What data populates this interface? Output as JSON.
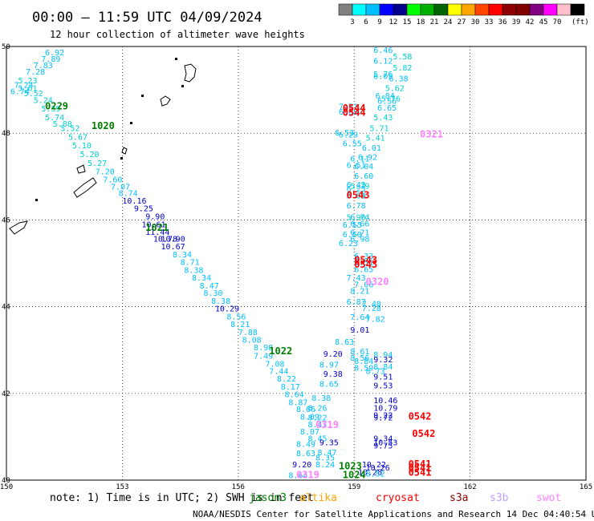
{
  "title": "00:00 – 11:59 UTC 04/09/2024",
  "subtitle": "12 hour collection of altimeter wave heights",
  "colorbar": {
    "ticks": [
      "3",
      "6",
      "9",
      "12",
      "15",
      "18",
      "21",
      "24",
      "27",
      "30",
      "33",
      "36",
      "39",
      "42",
      "45",
      "70"
    ],
    "unit": "(ft)",
    "colors": [
      "#808080",
      "#00ffff",
      "#00bfff",
      "#0000ff",
      "#00008b",
      "#00ff00",
      "#00b000",
      "#006400",
      "#ffff00",
      "#ffa500",
      "#ff4500",
      "#ff0000",
      "#8b0000",
      "#800000",
      "#800080",
      "#ff00ff",
      "#ffc0cb",
      "#000000"
    ]
  },
  "note": {
    "prefix": "note:  1) Time is in UTC; 2) SWH is in feet",
    "satellites": [
      {
        "name": "jason3",
        "color": "#008000"
      },
      {
        "name": "altika",
        "color": "#ffa500"
      },
      {
        "name": "cryosat",
        "color": "#ff0000"
      },
      {
        "name": "s3a",
        "color": "#8b0000"
      },
      {
        "name": "s3b",
        "color": "#c0a0ff"
      },
      {
        "name": "swot",
        "color": "#ff80ff"
      }
    ]
  },
  "footer": "NOAA/NESDIS Center for Satellite Applications and Research   14 Dec 04:40:54 UTC 2024",
  "chart_data": {
    "type": "scatter",
    "title": "00:00 – 11:59 UTC 04/09/2024",
    "subtitle": "12 hour collection of altimeter wave heights",
    "xlim": [
      150,
      165
    ],
    "ylim": [
      40,
      50
    ],
    "xticks": [
      150,
      153,
      156,
      159,
      162,
      165
    ],
    "yticks": [
      40,
      42,
      44,
      46,
      48,
      50
    ],
    "grid": true,
    "units": "ft",
    "tracks": [
      {
        "time": "0229",
        "satellite": "jason3",
        "label_lon": 151.0,
        "label_lat": 48.55
      },
      {
        "time": "1020",
        "satellite": "jason3",
        "label_lon": 152.2,
        "label_lat": 48.1
      },
      {
        "time": "1021",
        "satellite": "jason3",
        "label_lon": 153.6,
        "label_lat": 45.75
      },
      {
        "time": "1022",
        "satellite": "jason3",
        "label_lon": 156.8,
        "label_lat": 42.9
      },
      {
        "time": "1023",
        "satellite": "jason3",
        "label_lon": 158.6,
        "label_lat": 40.25
      },
      {
        "time": "1024",
        "satellite": "jason3",
        "label_lon": 158.7,
        "label_lat": 40.05
      },
      {
        "time": "0544",
        "satellite": "cryosat",
        "label_lon": 158.7,
        "label_lat": 48.5
      },
      {
        "time": "0544",
        "satellite": "cryosat",
        "label_lon": 158.7,
        "label_lat": 48.4
      },
      {
        "time": "0543",
        "satellite": "cryosat",
        "label_lon": 158.8,
        "label_lat": 46.5
      },
      {
        "time": "0543",
        "satellite": "cryosat",
        "label_lon": 159.0,
        "label_lat": 45.0
      },
      {
        "time": "0543",
        "satellite": "cryosat",
        "label_lon": 159.0,
        "label_lat": 44.9
      },
      {
        "time": "0542",
        "satellite": "cryosat",
        "label_lon": 160.4,
        "label_lat": 41.4
      },
      {
        "time": "0542",
        "satellite": "cryosat",
        "label_lon": 160.5,
        "label_lat": 41.0
      },
      {
        "time": "0541",
        "satellite": "cryosat",
        "label_lon": 160.4,
        "label_lat": 40.3
      },
      {
        "time": "0541",
        "satellite": "cryosat",
        "label_lon": 160.4,
        "label_lat": 40.2
      },
      {
        "time": "0541",
        "satellite": "cryosat",
        "label_lon": 160.4,
        "label_lat": 40.1
      },
      {
        "time": "0321",
        "satellite": "swot",
        "label_lon": 160.7,
        "label_lat": 47.9
      },
      {
        "time": "0320",
        "satellite": "swot",
        "label_lon": 159.3,
        "label_lat": 44.5
      },
      {
        "time": "0319",
        "satellite": "swot",
        "label_lon": 158.0,
        "label_lat": 41.2
      },
      {
        "time": "0319",
        "satellite": "swot",
        "label_lon": 157.5,
        "label_lat": 40.05
      }
    ],
    "points": [
      {
        "lon": 151.0,
        "lat": 49.8,
        "v": 6.92
      },
      {
        "lon": 150.9,
        "lat": 49.65,
        "v": 7.89
      },
      {
        "lon": 150.7,
        "lat": 49.5,
        "v": 7.83
      },
      {
        "lon": 150.5,
        "lat": 49.35,
        "v": 7.28
      },
      {
        "lon": 150.3,
        "lat": 49.15,
        "v": 5.23
      },
      {
        "lon": 150.2,
        "lat": 49.05,
        "v": 7.24
      },
      {
        "lon": 150.3,
        "lat": 48.97,
        "v": 5.61
      },
      {
        "lon": 150.1,
        "lat": 48.9,
        "v": 6.74
      },
      {
        "lon": 150.45,
        "lat": 48.85,
        "v": 5.52
      },
      {
        "lon": 150.7,
        "lat": 48.7,
        "v": 5.24
      },
      {
        "lon": 150.9,
        "lat": 48.5,
        "v": 5.39
      },
      {
        "lon": 151.0,
        "lat": 48.3,
        "v": 5.74
      },
      {
        "lon": 151.2,
        "lat": 48.15,
        "v": 5.88
      },
      {
        "lon": 151.4,
        "lat": 48.05,
        "v": 5.52
      },
      {
        "lon": 151.6,
        "lat": 47.85,
        "v": 5.67
      },
      {
        "lon": 151.7,
        "lat": 47.65,
        "v": 5.1
      },
      {
        "lon": 151.9,
        "lat": 47.45,
        "v": 5.2
      },
      {
        "lon": 152.1,
        "lat": 47.25,
        "v": 5.27
      },
      {
        "lon": 152.3,
        "lat": 47.05,
        "v": 7.2
      },
      {
        "lon": 152.5,
        "lat": 46.87,
        "v": 7.6
      },
      {
        "lon": 152.7,
        "lat": 46.7,
        "v": 7.07
      },
      {
        "lon": 152.9,
        "lat": 46.55,
        "v": 8.74
      },
      {
        "lon": 153.0,
        "lat": 46.38,
        "v": 10.16
      },
      {
        "lon": 153.3,
        "lat": 46.2,
        "v": 9.25
      },
      {
        "lon": 153.6,
        "lat": 46.02,
        "v": 9.9
      },
      {
        "lon": 153.5,
        "lat": 45.83,
        "v": 10.61
      },
      {
        "lon": 153.6,
        "lat": 45.66,
        "v": 11.44
      },
      {
        "lon": 153.8,
        "lat": 45.5,
        "v": 10.78
      },
      {
        "lon": 154.0,
        "lat": 45.5,
        "v": 10.9
      },
      {
        "lon": 154.0,
        "lat": 45.32,
        "v": 10.67
      },
      {
        "lon": 154.3,
        "lat": 45.14,
        "v": 8.34
      },
      {
        "lon": 154.5,
        "lat": 44.96,
        "v": 8.71
      },
      {
        "lon": 154.6,
        "lat": 44.78,
        "v": 8.38
      },
      {
        "lon": 154.8,
        "lat": 44.6,
        "v": 8.34
      },
      {
        "lon": 155.0,
        "lat": 44.42,
        "v": 8.47
      },
      {
        "lon": 155.1,
        "lat": 44.25,
        "v": 8.3
      },
      {
        "lon": 155.3,
        "lat": 44.07,
        "v": 8.38
      },
      {
        "lon": 155.4,
        "lat": 43.89,
        "v": 10.29
      },
      {
        "lon": 155.7,
        "lat": 43.71,
        "v": 8.56
      },
      {
        "lon": 155.8,
        "lat": 43.53,
        "v": 8.21
      },
      {
        "lon": 156.0,
        "lat": 43.35,
        "v": 7.88
      },
      {
        "lon": 156.1,
        "lat": 43.17,
        "v": 8.08
      },
      {
        "lon": 156.4,
        "lat": 42.99,
        "v": 8.98
      },
      {
        "lon": 156.4,
        "lat": 42.8,
        "v": 7.49
      },
      {
        "lon": 156.7,
        "lat": 42.62,
        "v": 7.08
      },
      {
        "lon": 156.8,
        "lat": 42.45,
        "v": 7.44
      },
      {
        "lon": 157.0,
        "lat": 42.27,
        "v": 8.22
      },
      {
        "lon": 157.1,
        "lat": 42.09,
        "v": 8.17
      },
      {
        "lon": 157.2,
        "lat": 41.91,
        "v": 8.64
      },
      {
        "lon": 157.3,
        "lat": 41.73,
        "v": 8.87
      },
      {
        "lon": 157.5,
        "lat": 41.57,
        "v": 8.66
      },
      {
        "lon": 157.6,
        "lat": 41.4,
        "v": 8.09
      },
      {
        "lon": 157.8,
        "lat": 41.22,
        "v": 8.47
      },
      {
        "lon": 157.6,
        "lat": 41.05,
        "v": 8.07
      },
      {
        "lon": 157.8,
        "lat": 40.9,
        "v": 8.45
      },
      {
        "lon": 157.5,
        "lat": 40.77,
        "v": 8.49
      },
      {
        "lon": 157.5,
        "lat": 40.55,
        "v": 8.63
      },
      {
        "lon": 157.3,
        "lat": 40.05,
        "v": 8.64
      },
      {
        "lon": 158.05,
        "lat": 40.57,
        "v": 8.47
      },
      {
        "lon": 158.0,
        "lat": 40.45,
        "v": 8.35
      },
      {
        "lon": 158.0,
        "lat": 40.3,
        "v": 8.24
      },
      {
        "lon": 157.9,
        "lat": 41.83,
        "v": 8.38
      },
      {
        "lon": 157.8,
        "lat": 41.6,
        "v": 8.26
      },
      {
        "lon": 157.8,
        "lat": 41.38,
        "v": 8.22
      },
      {
        "lon": 158.9,
        "lat": 42.9,
        "v": 8.61
      },
      {
        "lon": 158.9,
        "lat": 42.75,
        "v": 8.56
      },
      {
        "lon": 159.0,
        "lat": 42.68,
        "v": 8.84
      },
      {
        "lon": 159.0,
        "lat": 42.52,
        "v": 8.59
      },
      {
        "lon": 159.3,
        "lat": 42.45,
        "v": 8.73
      },
      {
        "lon": 159.5,
        "lat": 49.85,
        "v": 6.46
      },
      {
        "lon": 159.5,
        "lat": 49.6,
        "v": 6.12
      },
      {
        "lon": 159.5,
        "lat": 49.3,
        "v": 5.76
      },
      {
        "lon": 159.5,
        "lat": 49.25,
        "v": 6.05
      },
      {
        "lon": 159.55,
        "lat": 48.8,
        "v": 6.84
      },
      {
        "lon": 159.6,
        "lat": 48.68,
        "v": 6.56
      },
      {
        "lon": 158.6,
        "lat": 48.55,
        "v": 7.31
      },
      {
        "lon": 158.6,
        "lat": 48.43,
        "v": 6.68
      },
      {
        "lon": 158.5,
        "lat": 47.95,
        "v": 6.53
      },
      {
        "lon": 158.6,
        "lat": 47.9,
        "v": 6.29
      },
      {
        "lon": 158.7,
        "lat": 47.7,
        "v": 6.55
      },
      {
        "lon": 158.9,
        "lat": 47.35,
        "v": 6.11
      },
      {
        "lon": 158.8,
        "lat": 47.2,
        "v": 6.51
      },
      {
        "lon": 158.8,
        "lat": 46.75,
        "v": 6.43
      },
      {
        "lon": 158.8,
        "lat": 46.65,
        "v": 6.23
      },
      {
        "lon": 158.8,
        "lat": 46.5,
        "v": 6.61
      },
      {
        "lon": 158.9,
        "lat": 46.0,
        "v": 6.74
      },
      {
        "lon": 158.9,
        "lat": 45.85,
        "v": 6.66
      },
      {
        "lon": 158.9,
        "lat": 45.65,
        "v": 6.71
      },
      {
        "lon": 158.9,
        "lat": 45.5,
        "v": 6.98
      },
      {
        "lon": 159.0,
        "lat": 45.1,
        "v": 6.33
      },
      {
        "lon": 159.0,
        "lat": 44.95,
        "v": 6.51
      },
      {
        "lon": 159.0,
        "lat": 44.8,
        "v": 6.65
      },
      {
        "lon": 158.8,
        "lat": 44.6,
        "v": 7.43
      },
      {
        "lon": 159.0,
        "lat": 44.45,
        "v": 7.06
      },
      {
        "lon": 158.9,
        "lat": 44.3,
        "v": 8.21
      },
      {
        "lon": 158.8,
        "lat": 44.05,
        "v": 6.87
      },
      {
        "lon": 159.2,
        "lat": 44.0,
        "v": 7.4
      },
      {
        "lon": 159.2,
        "lat": 43.9,
        "v": 7.28
      },
      {
        "lon": 158.9,
        "lat": 43.7,
        "v": 7.64
      },
      {
        "lon": 159.3,
        "lat": 43.65,
        "v": 7.82
      },
      {
        "lon": 158.9,
        "lat": 43.4,
        "v": 9.01
      },
      {
        "lon": 158.5,
        "lat": 43.12,
        "v": 8.63
      },
      {
        "lon": 158.2,
        "lat": 42.85,
        "v": 9.2
      },
      {
        "lon": 158.1,
        "lat": 42.6,
        "v": 8.97
      },
      {
        "lon": 158.2,
        "lat": 42.38,
        "v": 9.38
      },
      {
        "lon": 158.1,
        "lat": 42.15,
        "v": 8.65
      },
      {
        "lon": 159.5,
        "lat": 42.83,
        "v": 8.94
      },
      {
        "lon": 159.5,
        "lat": 42.72,
        "v": 9.32
      },
      {
        "lon": 159.5,
        "lat": 42.55,
        "v": 8.84
      },
      {
        "lon": 159.5,
        "lat": 42.32,
        "v": 9.51
      },
      {
        "lon": 159.5,
        "lat": 42.12,
        "v": 9.53
      },
      {
        "lon": 159.5,
        "lat": 41.77,
        "v": 10.46
      },
      {
        "lon": 159.5,
        "lat": 41.6,
        "v": 10.79
      },
      {
        "lon": 159.5,
        "lat": 41.43,
        "v": 9.22
      },
      {
        "lon": 159.5,
        "lat": 41.38,
        "v": 9.72
      },
      {
        "lon": 159.5,
        "lat": 40.9,
        "v": 9.34
      },
      {
        "lon": 159.5,
        "lat": 40.8,
        "v": 10.53
      },
      {
        "lon": 159.5,
        "lat": 40.73,
        "v": 9.75
      },
      {
        "lon": 158.1,
        "lat": 40.8,
        "v": 9.35
      },
      {
        "lon": 157.4,
        "lat": 40.3,
        "v": 9.2
      },
      {
        "lon": 159.2,
        "lat": 40.3,
        "v": 10.22
      },
      {
        "lon": 159.3,
        "lat": 40.22,
        "v": 10.26
      },
      {
        "lon": 159.1,
        "lat": 40.12,
        "v": 10.28
      },
      {
        "lon": 159.3,
        "lat": 40.08,
        "v": 8.52
      },
      {
        "lon": 160.0,
        "lat": 49.7,
        "v": 5.58
      },
      {
        "lon": 160.0,
        "lat": 49.45,
        "v": 5.82
      },
      {
        "lon": 159.9,
        "lat": 49.2,
        "v": 6.38
      },
      {
        "lon": 159.8,
        "lat": 48.97,
        "v": 5.62
      },
      {
        "lon": 159.7,
        "lat": 48.73,
        "v": 5.76
      },
      {
        "lon": 159.6,
        "lat": 48.52,
        "v": 6.65
      },
      {
        "lon": 159.5,
        "lat": 48.3,
        "v": 5.43
      },
      {
        "lon": 159.4,
        "lat": 48.05,
        "v": 5.71
      },
      {
        "lon": 159.3,
        "lat": 47.83,
        "v": 5.41
      },
      {
        "lon": 159.2,
        "lat": 47.6,
        "v": 6.01
      },
      {
        "lon": 159.1,
        "lat": 47.38,
        "v": 6.92
      },
      {
        "lon": 159.0,
        "lat": 47.17,
        "v": 6.04
      },
      {
        "lon": 159.0,
        "lat": 46.95,
        "v": 6.6
      },
      {
        "lon": 158.9,
        "lat": 46.72,
        "v": 5.79
      },
      {
        "lon": 158.8,
        "lat": 46.5,
        "v": 5.6
      },
      {
        "lon": 158.8,
        "lat": 46.27,
        "v": 6.78
      },
      {
        "lon": 158.8,
        "lat": 46.0,
        "v": 5.9
      },
      {
        "lon": 158.7,
        "lat": 45.82,
        "v": 6.55
      },
      {
        "lon": 158.7,
        "lat": 45.6,
        "v": 6.6
      },
      {
        "lon": 158.6,
        "lat": 45.4,
        "v": 6.23
      }
    ]
  }
}
